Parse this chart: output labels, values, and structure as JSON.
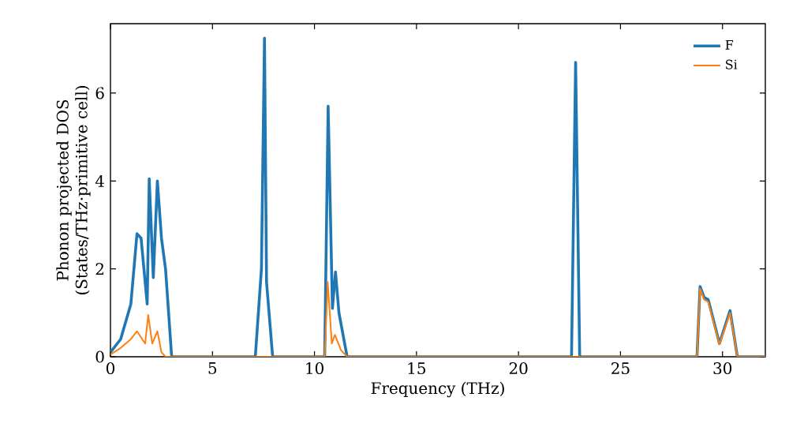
{
  "chart_data": {
    "type": "line",
    "xlabel": "Frequency (THz)",
    "ylabel": "Phonon projected DOS (States/THz·primitive cell)",
    "xlim": [
      0,
      32.1
    ],
    "ylim": [
      0,
      7.58
    ],
    "xticks": [
      0,
      5,
      10,
      15,
      20,
      25,
      30
    ],
    "yticks": [
      0,
      2,
      4,
      6
    ],
    "grid": false,
    "legend": "top right",
    "series": [
      {
        "name": "F",
        "color": "#1f77b4",
        "x": [
          0,
          0.5,
          1.0,
          1.3,
          1.5,
          1.8,
          1.9,
          2.1,
          2.3,
          2.5,
          2.7,
          3.0,
          7.1,
          7.4,
          7.55,
          7.65,
          7.95,
          10.5,
          10.67,
          10.88,
          11.03,
          11.2,
          11.6,
          22.6,
          22.8,
          23.0,
          28.75,
          28.9,
          29.1,
          29.3,
          29.85,
          30.37,
          30.73,
          32.1
        ],
        "values": [
          0.1,
          0.4,
          1.2,
          2.8,
          2.7,
          1.2,
          4.05,
          1.8,
          4.0,
          2.7,
          2.0,
          0,
          0,
          2.0,
          7.25,
          1.7,
          0,
          0,
          5.7,
          1.1,
          1.93,
          1.0,
          0,
          0,
          6.7,
          0,
          0,
          1.6,
          1.35,
          1.3,
          0.3,
          1.05,
          0,
          0
        ]
      },
      {
        "name": "Si",
        "color": "#ff7f0e",
        "x": [
          0,
          0.5,
          1.0,
          1.3,
          1.7,
          1.85,
          2.05,
          2.3,
          2.5,
          2.7,
          10.5,
          10.65,
          10.85,
          11.0,
          11.3,
          11.6,
          28.75,
          28.9,
          29.1,
          29.3,
          29.85,
          30.37,
          30.73,
          32.1
        ],
        "values": [
          0.05,
          0.2,
          0.4,
          0.58,
          0.3,
          0.95,
          0.3,
          0.58,
          0.1,
          0,
          0,
          1.7,
          0.3,
          0.5,
          0.15,
          0,
          0,
          1.55,
          1.3,
          1.25,
          0.28,
          1.0,
          0,
          0
        ]
      }
    ]
  }
}
